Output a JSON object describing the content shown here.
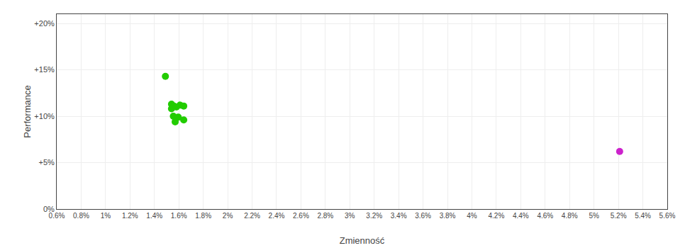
{
  "chart_data": {
    "type": "scatter",
    "xlabel": "Zmienność",
    "ylabel": "Performance",
    "grid": true,
    "xlim": [
      0.006,
      0.056
    ],
    "ylim": [
      0.0,
      0.21
    ],
    "xticks": [
      {
        "value": 0.006,
        "label": "0.6%"
      },
      {
        "value": 0.008,
        "label": "0.8%"
      },
      {
        "value": 0.01,
        "label": "1%"
      },
      {
        "value": 0.012,
        "label": "1.2%"
      },
      {
        "value": 0.014,
        "label": "1.4%"
      },
      {
        "value": 0.016,
        "label": "1.6%"
      },
      {
        "value": 0.018,
        "label": "1.8%"
      },
      {
        "value": 0.02,
        "label": "2%"
      },
      {
        "value": 0.022,
        "label": "2.2%"
      },
      {
        "value": 0.024,
        "label": "2.4%"
      },
      {
        "value": 0.026,
        "label": "2.6%"
      },
      {
        "value": 0.028,
        "label": "2.8%"
      },
      {
        "value": 0.03,
        "label": "3%"
      },
      {
        "value": 0.032,
        "label": "3.2%"
      },
      {
        "value": 0.034,
        "label": "3.4%"
      },
      {
        "value": 0.036,
        "label": "3.6%"
      },
      {
        "value": 0.038,
        "label": "3.8%"
      },
      {
        "value": 0.04,
        "label": "4%"
      },
      {
        "value": 0.042,
        "label": "4.2%"
      },
      {
        "value": 0.044,
        "label": "4.4%"
      },
      {
        "value": 0.046,
        "label": "4.6%"
      },
      {
        "value": 0.048,
        "label": "4.8%"
      },
      {
        "value": 0.05,
        "label": "5%"
      },
      {
        "value": 0.052,
        "label": "5.2%"
      },
      {
        "value": 0.054,
        "label": "5.4%"
      },
      {
        "value": 0.056,
        "label": "5.6%"
      }
    ],
    "yticks": [
      {
        "value": 0.0,
        "label": "0%"
      },
      {
        "value": 0.05,
        "label": "+5%"
      },
      {
        "value": 0.1,
        "label": "+10%"
      },
      {
        "value": 0.15,
        "label": "+15%"
      },
      {
        "value": 0.2,
        "label": "+20%"
      }
    ],
    "series": [
      {
        "color": "#22cc00",
        "x": [
          0.0149,
          0.0154,
          0.0156,
          0.0161,
          0.0154,
          0.0158,
          0.0164,
          0.01555,
          0.01595,
          0.0164,
          0.0157
        ],
        "values": [
          0.143,
          0.113,
          0.111,
          0.112,
          0.108,
          0.11,
          0.111,
          0.1,
          0.099,
          0.096,
          0.094
        ]
      },
      {
        "color": "#cc22cc",
        "x": [
          0.0521
        ],
        "values": [
          0.062
        ]
      }
    ]
  }
}
